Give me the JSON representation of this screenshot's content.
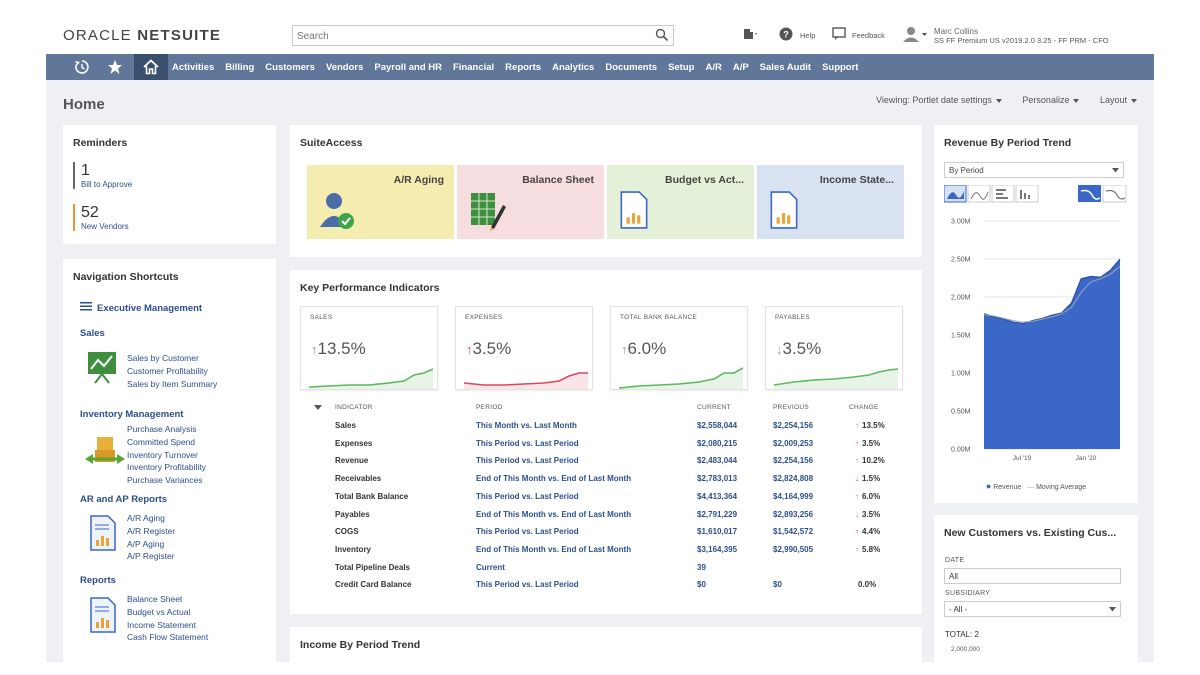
{
  "header": {
    "logo_oracle": "ORACLE",
    "logo_netsuite": "NETSUITE",
    "search_placeholder": "Search",
    "help_label": "Help",
    "feedback_label": "Feedback",
    "user_name": "Marc Collins",
    "user_role": "SS FF Premium US v2019.2.0 3.25 - FF PRM - CFO"
  },
  "nav": {
    "items": [
      "Activities",
      "Billing",
      "Customers",
      "Vendors",
      "Payroll and HR",
      "Financial",
      "Reports",
      "Analytics",
      "Documents",
      "Setup",
      "A/R",
      "A/P",
      "Sales Audit",
      "Support"
    ]
  },
  "page": {
    "title": "Home",
    "viewing": "Viewing: Portlet date settings",
    "personalize": "Personalize",
    "layout": "Layout"
  },
  "reminders": {
    "title": "Reminders",
    "items": [
      {
        "count": "1",
        "label": "Bill to Approve"
      },
      {
        "count": "52",
        "label": "New Vendors"
      }
    ]
  },
  "shortcuts": {
    "title": "Navigation Shortcuts",
    "executive": "Executive Management",
    "sections": [
      {
        "name": "Sales",
        "links": [
          "Sales by Customer",
          "Customer Profitability",
          "Sales by Item Summary"
        ]
      },
      {
        "name": "Inventory Management",
        "links": [
          "Purchase Analysis",
          "Committed Spend",
          "Inventory Turnover",
          "Inventory Profitability",
          "Purchase Variances"
        ]
      },
      {
        "name": "AR and AP Reports",
        "links": [
          "A/R Aging",
          "A/R Register",
          "A/P Aging",
          "A/P Register"
        ]
      },
      {
        "name": "Reports",
        "links": [
          "Balance Sheet",
          "Budget vs Actual",
          "Income Statement",
          "Cash Flow Statement"
        ]
      }
    ]
  },
  "suiteaccess": {
    "title": "SuiteAccess",
    "tiles": [
      {
        "label": "A/R Aging",
        "color": "#f5edb0"
      },
      {
        "label": "Balance Sheet",
        "color": "#f6dde0"
      },
      {
        "label": "Budget vs Act...",
        "color": "#e5f0d8"
      },
      {
        "label": "Income State...",
        "color": "#d9e2f0"
      }
    ]
  },
  "kpi": {
    "title": "Key Performance Indicators",
    "cards": [
      {
        "label": "SALES",
        "arrow": "↑",
        "value": "13.5%",
        "color": "#5cb85c"
      },
      {
        "label": "EXPENSES",
        "arrow": "↑",
        "value": "3.5%",
        "color": "#d9485f"
      },
      {
        "label": "TOTAL BANK BALANCE",
        "arrow": "↑",
        "value": "6.0%",
        "color": "#5cb85c"
      },
      {
        "label": "PAYABLES",
        "arrow": "↓",
        "value": "3.5%",
        "color": "#5cb85c"
      }
    ],
    "columns": [
      "INDICATOR",
      "PERIOD",
      "CURRENT",
      "PREVIOUS",
      "CHANGE"
    ],
    "rows": [
      {
        "indicator": "Sales",
        "period": "This Month vs. Last Month",
        "current": "$2,558,044",
        "previous": "$2,254,156",
        "arrow": "↑",
        "change": "13.5%",
        "dir": "up-green"
      },
      {
        "indicator": "Expenses",
        "period": "This Period vs. Last Period",
        "current": "$2,080,215",
        "previous": "$2,009,253",
        "arrow": "↑",
        "change": "3.5%",
        "dir": "up-red"
      },
      {
        "indicator": "Revenue",
        "period": "This Period vs. Last Period",
        "current": "$2,483,044",
        "previous": "$2,254,156",
        "arrow": "↑",
        "change": "10.2%",
        "dir": "up-green"
      },
      {
        "indicator": "Receivables",
        "period": "End of This Month vs. End of Last Month",
        "current": "$2,783,013",
        "previous": "$2,824,808",
        "arrow": "↓",
        "change": "1.5%",
        "dir": "down-red"
      },
      {
        "indicator": "Total Bank Balance",
        "period": "This Period vs. Last Period",
        "current": "$4,413,364",
        "previous": "$4,164,999",
        "arrow": "↑",
        "change": "6.0%",
        "dir": "up-green"
      },
      {
        "indicator": "Payables",
        "period": "End of This Month vs. End of Last Month",
        "current": "$2,791,229",
        "previous": "$2,893,256",
        "arrow": "↓",
        "change": "3.5%",
        "dir": "down-green"
      },
      {
        "indicator": "COGS",
        "period": "This Period vs. Last Period",
        "current": "$1,610,017",
        "previous": "$1,542,572",
        "arrow": "↑",
        "change": "4.4%",
        "dir": "up-red"
      },
      {
        "indicator": "Inventory",
        "period": "End of This Month vs. End of Last Month",
        "current": "$3,164,395",
        "previous": "$2,990,505",
        "arrow": "↑",
        "change": "5.8%",
        "dir": "up-green"
      },
      {
        "indicator": "Total Pipeline Deals",
        "period": "Current",
        "current": "39",
        "previous": "",
        "arrow": "",
        "change": "",
        "dir": ""
      },
      {
        "indicator": "Credit Card Balance",
        "period": "This Period vs. Last Period",
        "current": "$0",
        "previous": "$0",
        "arrow": "",
        "change": "0.0%",
        "dir": ""
      }
    ]
  },
  "income_trend": {
    "title": "Income By Period Trend"
  },
  "revenue_trend": {
    "title": "Revenue By Period Trend",
    "select": "By Period",
    "legend_revenue": "Revenue",
    "legend_ma": "Moving Average"
  },
  "chart_data": {
    "type": "area",
    "title": "Revenue By Period Trend",
    "yticks": [
      "3.00M",
      "2.50M",
      "2.00M",
      "1.50M",
      "1.00M",
      "0.50M",
      "0.00M"
    ],
    "ylim": [
      0,
      3.0
    ],
    "xticks": [
      "Jul '19",
      "Jan '20"
    ],
    "series": [
      {
        "name": "Revenue",
        "values": [
          1.78,
          1.74,
          1.71,
          1.67,
          1.65,
          1.69,
          1.72,
          1.76,
          1.79,
          1.92,
          2.24,
          2.27,
          2.26,
          2.35,
          2.5
        ]
      },
      {
        "name": "Moving Average",
        "values": [
          1.77,
          1.75,
          1.72,
          1.69,
          1.67,
          1.68,
          1.71,
          1.74,
          1.78,
          1.86,
          2.06,
          2.2,
          2.24,
          2.3,
          2.4
        ]
      }
    ],
    "colors": {
      "revenue": "#3b67c8",
      "moving_average": "#9aa5b8"
    }
  },
  "new_customers": {
    "title": "New Customers vs. Existing Cus...",
    "date_label": "DATE",
    "date_value": "All",
    "subsidiary_label": "SUBSIDIARY",
    "subsidiary_value": "- All -",
    "total": "TOTAL: 2",
    "first_tick": "2,000,000"
  },
  "colors": {
    "nav": "#607799",
    "nav_active": "#3a4f6e",
    "link": "#2b4f8c",
    "page_bg": "#eef0f4"
  }
}
